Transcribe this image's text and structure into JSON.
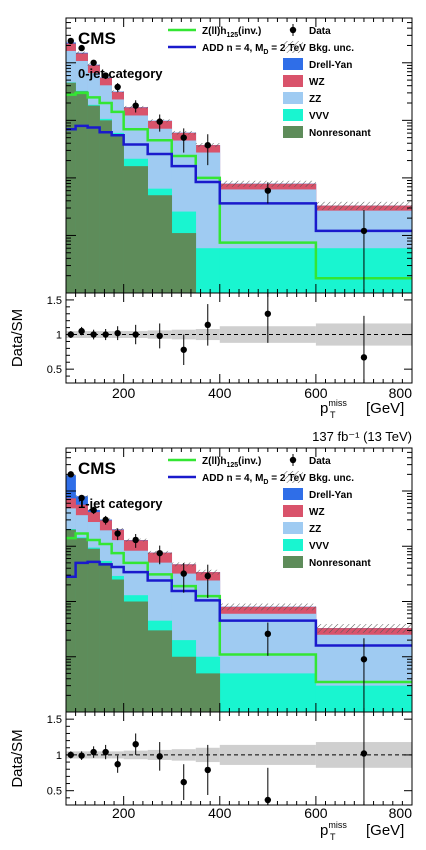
{
  "chart_data": [
    {
      "type": "stacked-histogram-with-ratio",
      "experiment": "CMS",
      "category": "0-jet category",
      "lumi_label": "",
      "xlabel": "p",
      "xlabel_sup": "miss",
      "xlabel_sub": "T",
      "xlabel_unit": "[GeV]",
      "ylabel_ratio": "Data/SM",
      "x_ticks": [
        "200",
        "400",
        "600",
        "800"
      ],
      "ratio_ticks": [
        "1.5",
        "1",
        "0.5"
      ],
      "xlim": [
        80,
        800
      ],
      "ylim_log": [
        0.01,
        600
      ],
      "ratio_ylim": [
        0.3,
        1.6
      ],
      "bin_edges": [
        80,
        100,
        125,
        150,
        175,
        200,
        250,
        300,
        350,
        400,
        600,
        800
      ],
      "stack": [
        {
          "name": "Nonresonant",
          "color": "#5e8c5a",
          "values": [
            45,
            32,
            18,
            10,
            5.5,
            1.6,
            0.5,
            0.11,
            0.01,
            0.01,
            0.01
          ]
        },
        {
          "name": "VVV",
          "color": "#19f5d0",
          "values": [
            0.6,
            0.6,
            0.6,
            0.6,
            0.55,
            0.55,
            0.15,
            0.15,
            0.05,
            0.05,
            0.05
          ]
        },
        {
          "name": "ZZ",
          "color": "#9fcbf2",
          "values": [
            115,
            75,
            48,
            30,
            17,
            10,
            6.5,
            4.2,
            2.7,
            0.57,
            0.21
          ]
        },
        {
          "name": "WZ",
          "color": "#d9536b",
          "values": [
            55,
            38,
            24,
            14,
            8,
            4.6,
            2.6,
            1.6,
            0.95,
            0.16,
            0.06
          ]
        },
        {
          "name": "Drell-Yan",
          "color": "#2f6ee8",
          "values": [
            10,
            4,
            2,
            1,
            0.5,
            0.2,
            0.1,
            0.05,
            0.02,
            0.005,
            0.001
          ]
        }
      ],
      "signals": [
        {
          "name": "Z(ll)h125(inv.)",
          "name_main": "Z(ll)h",
          "name_sub": "125",
          "name_tail": "(inv.)",
          "color": "#33e633",
          "values": [
            28,
            30,
            25,
            20,
            14,
            7,
            4.5,
            2.4,
            1.0,
            0.075,
            0.018
          ]
        },
        {
          "name": "ADD n = 4, MD = 2 TeV",
          "name_main": "ADD n = 4, M",
          "name_sub": "D",
          "name_tail": " = 2 TeV",
          "color": "#1a1acc",
          "values": [
            7,
            8,
            7.5,
            6.2,
            5.5,
            3.8,
            2.6,
            1.6,
            0.85,
            0.36,
            0.12
          ]
        }
      ],
      "data": {
        "name": "Data",
        "x": [
          90,
          112.5,
          137.5,
          162.5,
          187.5,
          225,
          275,
          325,
          375,
          500,
          700
        ],
        "y": [
          240,
          180,
          100,
          60,
          38,
          18,
          9.5,
          5.0,
          3.7,
          0.6,
          0.12
        ],
        "yerr_frac": [
          0.07,
          0.08,
          0.1,
          0.13,
          0.17,
          0.24,
          0.33,
          0.45,
          0.55,
          0.4,
          1.3
        ]
      },
      "bkg_unc_label": "Bkg. unc.",
      "bkg_unc_frac": [
        0.05,
        0.05,
        0.05,
        0.05,
        0.05,
        0.05,
        0.06,
        0.07,
        0.08,
        0.12,
        0.16
      ],
      "ratio": {
        "x": [
          90,
          112.5,
          137.5,
          162.5,
          187.5,
          225,
          275,
          325,
          375,
          500,
          700
        ],
        "values": [
          1.0,
          1.05,
          1.0,
          1.0,
          1.02,
          1.0,
          0.98,
          0.78,
          1.14,
          1.3,
          0.67
        ],
        "errors": [
          0.05,
          0.06,
          0.07,
          0.08,
          0.1,
          0.14,
          0.18,
          0.22,
          0.3,
          0.42,
          0.6
        ]
      }
    },
    {
      "type": "stacked-histogram-with-ratio",
      "experiment": "CMS",
      "category": "1-jet category",
      "lumi_label": "137 fb⁻¹ (13 TeV)",
      "xlabel": "p",
      "xlabel_sup": "miss",
      "xlabel_sub": "T",
      "xlabel_unit": "[GeV]",
      "ylabel_ratio": "Data/SM",
      "x_ticks": [
        "200",
        "400",
        "600",
        "800"
      ],
      "ratio_ticks": [
        "1.5",
        "1",
        "0.5"
      ],
      "xlim": [
        80,
        800
      ],
      "ylim_log": [
        0.01,
        600
      ],
      "ratio_ylim": [
        0.3,
        1.6
      ],
      "bin_edges": [
        80,
        100,
        125,
        150,
        175,
        200,
        250,
        300,
        350,
        400,
        600,
        800
      ],
      "stack": [
        {
          "name": "Nonresonant",
          "color": "#5e8c5a",
          "values": [
            20,
            14,
            9,
            5,
            2.5,
            1.0,
            0.3,
            0.1,
            0.05,
            0.01,
            0.01
          ]
        },
        {
          "name": "VVV",
          "color": "#19f5d0",
          "values": [
            0.5,
            0.5,
            0.45,
            0.42,
            0.4,
            0.3,
            0.15,
            0.1,
            0.05,
            0.04,
            0.02
          ]
        },
        {
          "name": "ZZ",
          "color": "#9fcbf2",
          "values": [
            28,
            22,
            18,
            14,
            10,
            7,
            4.6,
            3.0,
            2.3,
            0.55,
            0.22
          ]
        },
        {
          "name": "WZ",
          "color": "#d9536b",
          "values": [
            25,
            20,
            14,
            10,
            7,
            4.5,
            2.6,
            1.5,
            1.0,
            0.2,
            0.08
          ]
        },
        {
          "name": "Drell-Yan",
          "color": "#2f6ee8",
          "values": [
            120,
            24,
            4,
            1,
            0.4,
            0.15,
            0.05,
            0.02,
            0.01,
            0.005,
            0.001
          ]
        }
      ],
      "signals": [
        {
          "name": "Z(ll)h125(inv.)",
          "name_main": "Z(ll)h",
          "name_sub": "125",
          "name_tail": "(inv.)",
          "color": "#33e633",
          "values": [
            14,
            17,
            13,
            11,
            7.5,
            5,
            3.1,
            1.9,
            1.25,
            0.11,
            0.035
          ]
        },
        {
          "name": "ADD n = 4, MD = 2 TeV",
          "name_main": "ADD n = 4, M",
          "name_sub": "D",
          "name_tail": " = 2 TeV",
          "color": "#1a1acc",
          "values": [
            2.8,
            5,
            5.2,
            4.7,
            4.2,
            3.4,
            2.4,
            1.55,
            1.05,
            0.45,
            0.16
          ]
        }
      ],
      "data": {
        "name": "Data",
        "x": [
          90,
          112.5,
          137.5,
          162.5,
          187.5,
          225,
          275,
          325,
          375,
          500,
          700
        ],
        "y": [
          200,
          75,
          45,
          30,
          17,
          13,
          7.5,
          3.2,
          2.9,
          0.26,
          0.09
        ],
        "yerr_frac": [
          0.07,
          0.12,
          0.15,
          0.18,
          0.24,
          0.28,
          0.37,
          0.55,
          0.6,
          0.6,
          1.4
        ]
      },
      "bkg_unc_label": "Bkg. unc.",
      "bkg_unc_frac": [
        0.05,
        0.05,
        0.05,
        0.05,
        0.05,
        0.06,
        0.07,
        0.08,
        0.1,
        0.14,
        0.18
      ],
      "ratio": {
        "x": [
          90,
          112.5,
          137.5,
          162.5,
          187.5,
          225,
          275,
          325,
          375,
          500,
          700
        ],
        "values": [
          1.0,
          0.99,
          1.04,
          1.04,
          0.87,
          1.15,
          0.98,
          0.62,
          0.79,
          0.37,
          1.02
        ],
        "errors": [
          0.05,
          0.06,
          0.08,
          0.1,
          0.12,
          0.15,
          0.2,
          0.25,
          0.35,
          0.45,
          0.8
        ]
      }
    }
  ]
}
